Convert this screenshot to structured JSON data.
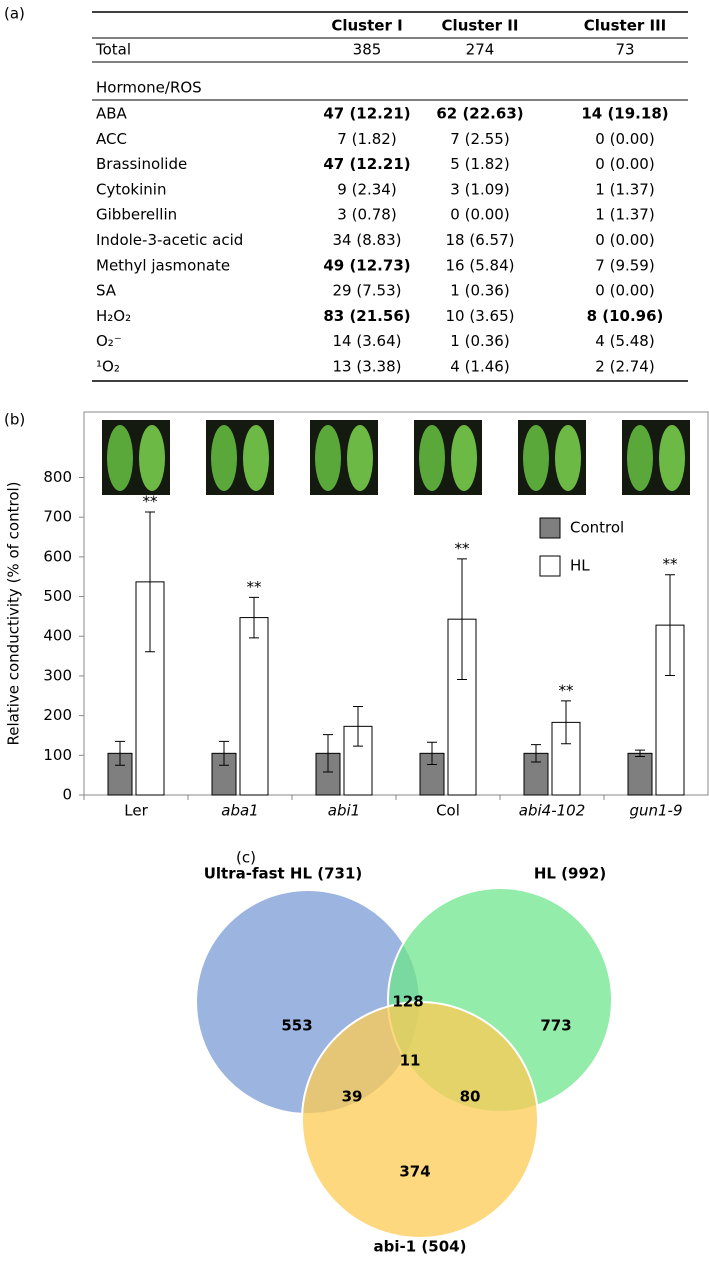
{
  "panel_a": {
    "label": "(a)",
    "columns": [
      "Cluster I",
      "Cluster II",
      "Cluster III"
    ],
    "total": {
      "label": "Total",
      "cells": [
        "385",
        "274",
        "73"
      ]
    },
    "section": "Hormone/ROS",
    "rows": [
      {
        "label": "ABA",
        "cells": [
          "47 (12.21)",
          "62 (22.63)",
          "14 (19.18)"
        ],
        "bold": [
          true,
          true,
          true
        ]
      },
      {
        "label": "ACC",
        "cells": [
          "7 (1.82)",
          "7 (2.55)",
          "0 (0.00)"
        ],
        "bold": [
          false,
          false,
          false
        ]
      },
      {
        "label": "Brassinolide",
        "cells": [
          "47 (12.21)",
          "5 (1.82)",
          "0 (0.00)"
        ],
        "bold": [
          true,
          false,
          false
        ]
      },
      {
        "label": "Cytokinin",
        "cells": [
          "9 (2.34)",
          "3 (1.09)",
          "1 (1.37)"
        ],
        "bold": [
          false,
          false,
          false
        ]
      },
      {
        "label": "Gibberellin",
        "cells": [
          "3 (0.78)",
          "0 (0.00)",
          "1 (1.37)"
        ],
        "bold": [
          false,
          false,
          false
        ]
      },
      {
        "label": "Indole-3-acetic acid",
        "cells": [
          "34 (8.83)",
          "18 (6.57)",
          "0 (0.00)"
        ],
        "bold": [
          false,
          false,
          false
        ]
      },
      {
        "label": "Methyl jasmonate",
        "cells": [
          "49 (12.73)",
          "16 (5.84)",
          "7 (9.59)"
        ],
        "bold": [
          true,
          false,
          false
        ]
      },
      {
        "label": "SA",
        "cells": [
          "29 (7.53)",
          "1 (0.36)",
          "0 (0.00)"
        ],
        "bold": [
          false,
          false,
          false
        ]
      },
      {
        "label": "H₂O₂",
        "cells": [
          "83 (21.56)",
          "10 (3.65)",
          "8 (10.96)"
        ],
        "bold": [
          true,
          false,
          true
        ]
      },
      {
        "label": "O₂⁻",
        "cells": [
          "14 (3.64)",
          "1 (0.36)",
          "4 (5.48)"
        ],
        "bold": [
          false,
          false,
          false
        ]
      },
      {
        "label": "¹O₂",
        "cells": [
          "13 (3.38)",
          "4 (1.46)",
          "2 (2.74)"
        ],
        "bold": [
          false,
          false,
          false
        ]
      }
    ]
  },
  "chart_data": {
    "type": "bar",
    "panel_label": "(b)",
    "ylabel": "Relative conductivity (% of control)",
    "categories": [
      "Ler",
      "aba1",
      "abi1",
      "Col",
      "abi4-102",
      "gun1-9"
    ],
    "italic": [
      false,
      true,
      true,
      false,
      true,
      true
    ],
    "series": [
      {
        "name": "Control",
        "color": "#7f7f7f",
        "values": [
          105,
          105,
          105,
          105,
          105,
          105
        ],
        "errors": [
          30,
          30,
          47,
          28,
          22,
          8
        ]
      },
      {
        "name": "HL",
        "color": "#ffffff",
        "values": [
          537,
          447,
          173,
          443,
          183,
          428
        ],
        "errors": [
          176,
          51,
          50,
          152,
          54,
          127
        ],
        "markers": [
          "**",
          "**",
          null,
          "**",
          "**",
          "**"
        ]
      }
    ],
    "ylim": [
      0,
      965
    ],
    "yticks": [
      0,
      100,
      200,
      300,
      400,
      500,
      600,
      700,
      800
    ],
    "legend": "right"
  },
  "panel_c": {
    "label": "(c)",
    "sets": [
      {
        "label": "Ultra-fast HL (731)",
        "color": "#7b9bd5"
      },
      {
        "label": "HL (992)",
        "color": "#6fe68c"
      },
      {
        "label": "abi-1 (504)",
        "color": "#fdcb53"
      }
    ],
    "regions": [
      553,
      128,
      773,
      11,
      39,
      80,
      374
    ]
  }
}
